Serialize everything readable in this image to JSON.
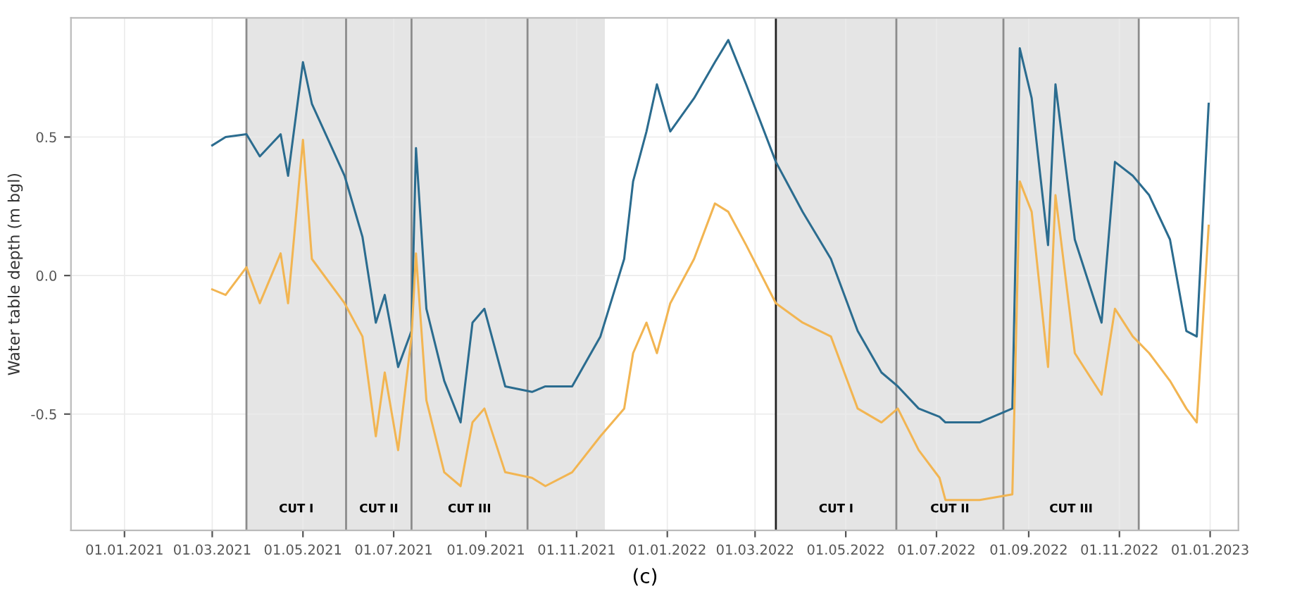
{
  "chart_data": {
    "type": "line",
    "ylabel": "Water table depth (m bgl)",
    "x": [
      "2021-03-01",
      "2021-03-10",
      "2021-03-24",
      "2021-04-02",
      "2021-04-16",
      "2021-04-21",
      "2021-05-01",
      "2021-05-07",
      "2021-05-18",
      "2021-05-29",
      "2021-06-10",
      "2021-06-19",
      "2021-06-25",
      "2021-07-04",
      "2021-07-13",
      "2021-07-16",
      "2021-07-23",
      "2021-08-04",
      "2021-08-15",
      "2021-08-23",
      "2021-08-31",
      "2021-09-14",
      "2021-10-02",
      "2021-10-11",
      "2021-10-29",
      "2021-11-17",
      "2021-12-03",
      "2021-12-09",
      "2021-12-18",
      "2021-12-25",
      "2022-01-03",
      "2022-01-19",
      "2022-02-02",
      "2022-02-11",
      "2022-02-23",
      "2022-03-15",
      "2022-04-02",
      "2022-04-21",
      "2022-05-09",
      "2022-05-25",
      "2022-06-05",
      "2022-06-19",
      "2022-07-03",
      "2022-07-07",
      "2022-07-30",
      "2022-08-21",
      "2022-08-26",
      "2022-09-03",
      "2022-09-14",
      "2022-09-19",
      "2022-10-02",
      "2022-10-20",
      "2022-10-29",
      "2022-11-10",
      "2022-11-21",
      "2022-12-05",
      "2022-12-16",
      "2022-12-23",
      "2022-12-31"
    ],
    "series": [
      {
        "color": "#2b6c8f",
        "values": [
          0.47,
          0.5,
          0.51,
          0.43,
          0.51,
          0.36,
          0.77,
          0.62,
          0.49,
          0.36,
          0.14,
          -0.17,
          -0.07,
          -0.33,
          -0.2,
          0.46,
          -0.12,
          -0.38,
          -0.53,
          -0.17,
          -0.12,
          -0.4,
          -0.42,
          -0.4,
          -0.4,
          -0.22,
          0.06,
          0.34,
          0.52,
          0.69,
          0.52,
          0.64,
          0.77,
          0.85,
          0.69,
          0.41,
          0.23,
          0.06,
          -0.2,
          -0.35,
          -0.4,
          -0.48,
          -0.51,
          -0.53,
          -0.53,
          -0.48,
          0.82,
          0.64,
          0.11,
          0.69,
          0.13,
          -0.17,
          0.41,
          0.36,
          0.29,
          0.13,
          -0.2,
          -0.22,
          0.62
        ]
      },
      {
        "color": "#f2b552",
        "values": [
          -0.05,
          -0.07,
          0.03,
          -0.1,
          0.08,
          -0.1,
          0.49,
          0.06,
          -0.02,
          -0.1,
          -0.22,
          -0.58,
          -0.35,
          -0.63,
          -0.22,
          0.08,
          -0.45,
          -0.71,
          -0.76,
          -0.53,
          -0.48,
          -0.71,
          -0.73,
          -0.76,
          -0.71,
          -0.58,
          -0.48,
          -0.28,
          -0.17,
          -0.28,
          -0.1,
          0.06,
          0.26,
          0.23,
          0.11,
          -0.1,
          -0.17,
          -0.22,
          -0.48,
          -0.53,
          -0.48,
          -0.63,
          -0.73,
          -0.81,
          -0.81,
          -0.79,
          0.34,
          0.23,
          -0.33,
          0.29,
          -0.28,
          -0.43,
          -0.12,
          -0.22,
          -0.28,
          -0.38,
          -0.48,
          -0.53,
          0.18
        ]
      }
    ],
    "xlim": [
      "2020-11-26",
      "2023-01-20"
    ],
    "xticks": [
      {
        "value": "2021-01-01",
        "label": "01.01.2021"
      },
      {
        "value": "2021-03-01",
        "label": "01.03.2021"
      },
      {
        "value": "2021-05-01",
        "label": "01.05.2021"
      },
      {
        "value": "2021-07-01",
        "label": "01.07.2021"
      },
      {
        "value": "2021-09-01",
        "label": "01.09.2021"
      },
      {
        "value": "2021-11-01",
        "label": "01.11.2021"
      },
      {
        "value": "2022-01-01",
        "label": "01.01.2022"
      },
      {
        "value": "2022-03-01",
        "label": "01.03.2022"
      },
      {
        "value": "2022-05-01",
        "label": "01.05.2022"
      },
      {
        "value": "2022-07-01",
        "label": "01.07.2022"
      },
      {
        "value": "2022-09-01",
        "label": "01.09.2022"
      },
      {
        "value": "2022-11-01",
        "label": "01.11.2022"
      },
      {
        "value": "2023-01-01",
        "label": "01.01.2023"
      }
    ],
    "ylim": [
      -0.92,
      0.93
    ],
    "yticks": [
      {
        "value": -0.5,
        "label": "-0.5"
      },
      {
        "value": 0.0,
        "label": "0.0"
      },
      {
        "value": 0.5,
        "label": "0.5"
      }
    ],
    "grid": true,
    "bands": [
      {
        "axis": "x",
        "from": "2021-03-24",
        "to": "2021-11-20",
        "color": "#e5e5e5"
      },
      {
        "axis": "x",
        "from": "2022-03-15",
        "to": "2022-11-14",
        "color": "#e5e5e5"
      }
    ],
    "ref_lines": [
      {
        "axis": "x",
        "value": "2021-03-24",
        "color": "#8c8c8c"
      },
      {
        "axis": "x",
        "value": "2021-05-30",
        "color": "#8c8c8c"
      },
      {
        "axis": "x",
        "value": "2021-07-13",
        "color": "#8c8c8c"
      },
      {
        "axis": "x",
        "value": "2021-09-29",
        "color": "#8c8c8c"
      },
      {
        "axis": "x",
        "value": "2022-03-15",
        "color": "#202020"
      },
      {
        "axis": "x",
        "value": "2022-06-04",
        "color": "#8c8c8c"
      },
      {
        "axis": "x",
        "value": "2022-08-15",
        "color": "#8c8c8c"
      },
      {
        "axis": "x",
        "value": "2022-11-14",
        "color": "#8c8c8c"
      }
    ],
    "annotations": [
      "CUT I",
      "CUT II",
      "CUT III",
      "CUT I",
      "CUT II",
      "CUT III",
      "(c)"
    ],
    "legend": false
  }
}
